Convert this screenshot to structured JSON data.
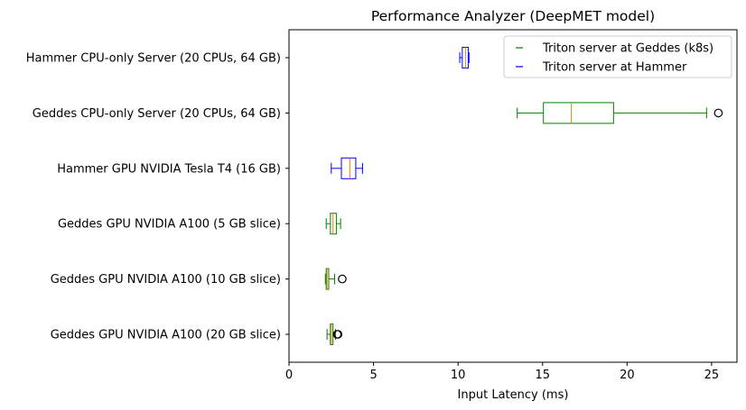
{
  "chart_data": {
    "type": "boxplot",
    "orientation": "horizontal",
    "title": "Performance Analyzer (DeepMET model)",
    "xlabel": "Input Latency (ms)",
    "ylabel": "",
    "xlim": [
      0,
      26.5
    ],
    "xticks": [
      0,
      5,
      10,
      15,
      20,
      25
    ],
    "grid": false,
    "legend": {
      "position": "top-right",
      "entries": [
        {
          "label": "Triton server at Geddes (k8s)",
          "color": "#008000"
        },
        {
          "label": "Triton server at Hammer",
          "color": "#0000ff"
        }
      ]
    },
    "median_color": "#ff7f0e",
    "categories": [
      "Hammer CPU-only Server (20 CPUs, 64 GB)",
      "Geddes CPU-only Server (20 CPUs, 64 GB)",
      "Hammer GPU NVIDIA Tesla T4 (16 GB)",
      "Geddes GPU NVIDIA A100 (5 GB slice)",
      "Geddes GPU NVIDIA A100 (10 GB slice)",
      "Geddes GPU NVIDIA A100 (20 GB slice)"
    ],
    "boxes": [
      {
        "category": "Hammer CPU-only Server (20 CPUs, 64 GB)",
        "series": "Triton server at Hammer",
        "whisker_low": 10.1,
        "q1": 10.25,
        "median": 10.45,
        "q3": 10.6,
        "whisker_high": 10.65,
        "outliers": []
      },
      {
        "category": "Geddes CPU-only Server (20 CPUs, 64 GB)",
        "series": "Triton server at Geddes (k8s)",
        "whisker_low": 13.5,
        "q1": 15.05,
        "median": 16.7,
        "q3": 19.2,
        "whisker_high": 24.7,
        "outliers": [
          25.4
        ]
      },
      {
        "category": "Hammer GPU NVIDIA Tesla T4 (16 GB)",
        "series": "Triton server at Hammer",
        "whisker_low": 2.5,
        "q1": 3.1,
        "median": 3.6,
        "q3": 3.95,
        "whisker_high": 4.35,
        "outliers": []
      },
      {
        "category": "Geddes GPU NVIDIA A100 (5 GB slice)",
        "series": "Triton server at Geddes (k8s)",
        "whisker_low": 2.2,
        "q1": 2.45,
        "median": 2.6,
        "q3": 2.8,
        "whisker_high": 3.05,
        "outliers": []
      },
      {
        "category": "Geddes GPU NVIDIA A100 (10 GB slice)",
        "series": "Triton server at Geddes (k8s)",
        "whisker_low": 2.15,
        "q1": 2.2,
        "median": 2.25,
        "q3": 2.35,
        "whisker_high": 2.7,
        "outliers": [
          3.15
        ]
      },
      {
        "category": "Geddes GPU NVIDIA A100 (20 GB slice)",
        "series": "Triton server at Geddes (k8s)",
        "whisker_low": 2.25,
        "q1": 2.45,
        "median": 2.5,
        "q3": 2.6,
        "whisker_high": 2.75,
        "outliers": [
          2.85,
          2.9
        ]
      }
    ]
  }
}
